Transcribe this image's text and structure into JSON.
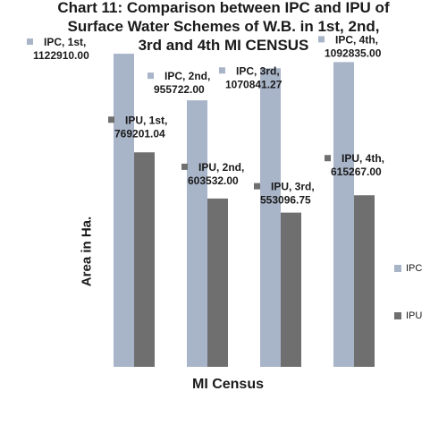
{
  "chart_data": {
    "type": "bar",
    "title": "Chart 11: Comparison between IPC and IPU of Surface Water Schemes of W.B. in 1st, 2nd, 3rd and 4th MI CENSUS",
    "title_lines": [
      "Chart 11: Comparison between IPC and IPU of",
      "Surface Water Schemes of W.B. in 1st, 2nd,",
      "3rd and 4th MI CENSUS"
    ],
    "xlabel": "MI Census",
    "ylabel": "Area in Ha.",
    "categories": [
      "1st",
      "2nd",
      "3rd",
      "4th"
    ],
    "series": [
      {
        "name": "IPC",
        "color": "#a8b4c8",
        "values": [
          1122910.0,
          955722.0,
          1070841.27,
          1092835.0
        ],
        "labels": [
          [
            "IPC, 1st,",
            "1122910.00"
          ],
          [
            "IPC, 2nd,",
            "955722.00"
          ],
          [
            "IPC, 3rd,",
            "1070841.27"
          ],
          [
            "IPC, 4th,",
            "1092835.00"
          ]
        ]
      },
      {
        "name": "IPU",
        "color": "#6f6f6f",
        "values": [
          769201.04,
          603532.0,
          553096.75,
          615267.0
        ],
        "labels": [
          [
            "IPU, 1st,",
            "769201.04"
          ],
          [
            "IPU, 2nd,",
            "603532.00"
          ],
          [
            "IPU, 3rd,",
            "553096.75"
          ],
          [
            "IPU, 4th,",
            "615267.00"
          ]
        ]
      }
    ],
    "ylim": [
      0,
      1200000
    ],
    "grid": false,
    "legend_position": "right"
  }
}
